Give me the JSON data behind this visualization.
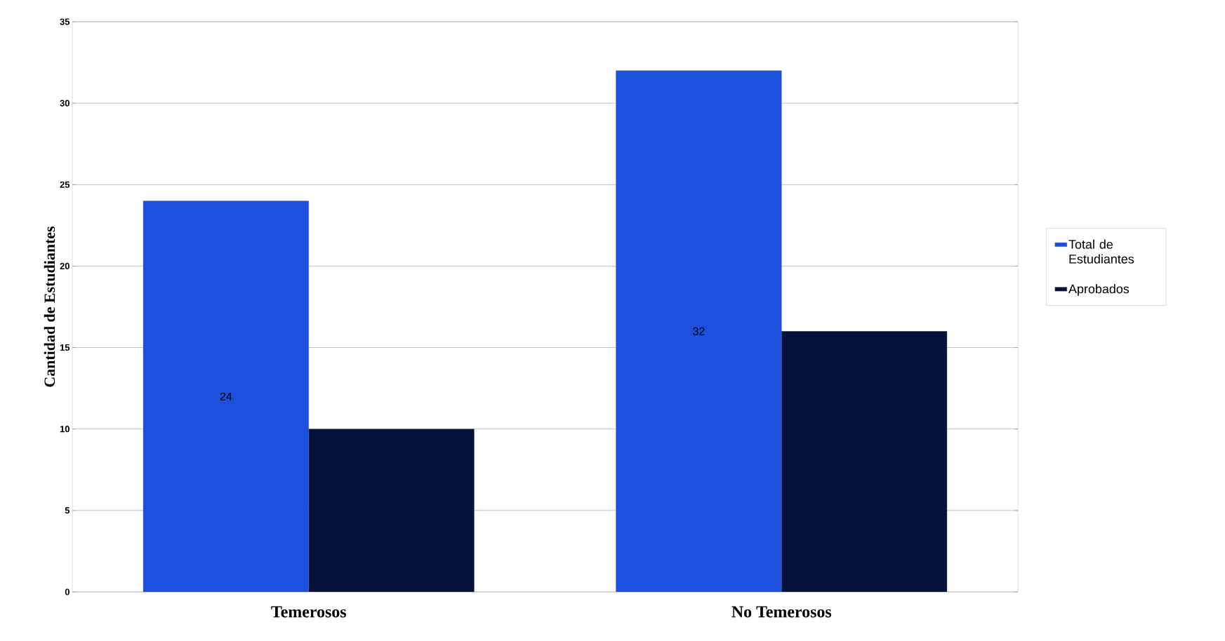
{
  "chart_data": {
    "type": "bar",
    "ylabel": "Cantidad de Estudiantes",
    "categories": [
      "Temerosos",
      "No Temerosos"
    ],
    "series": [
      {
        "name": "Total de Estudiantes",
        "color": "#1c4fdc",
        "values": [
          24,
          32
        ],
        "value_labels": [
          "24",
          "32"
        ]
      },
      {
        "name": "Aprobados",
        "color": "#06123c",
        "values": [
          10,
          16
        ]
      }
    ],
    "ylim": [
      0,
      35
    ],
    "yticks": [
      0,
      5,
      10,
      15,
      20,
      25,
      30,
      35
    ],
    "grid": "y",
    "legend": "right"
  }
}
